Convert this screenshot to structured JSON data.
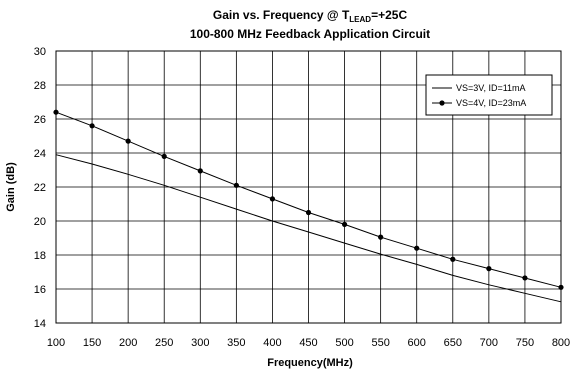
{
  "chart_data": {
    "type": "line",
    "title_prefix": "Gain vs. Frequency @ T",
    "title_sub": "LEAD",
    "title_suffix": "=+25C",
    "subtitle": "100-800 MHz Feedback Application Circuit",
    "xlabel": "Frequency(MHz)",
    "ylabel": "Gain (dB)",
    "xlim": [
      100,
      800
    ],
    "ylim": [
      14,
      30
    ],
    "xticks": [
      100,
      150,
      200,
      250,
      300,
      350,
      400,
      450,
      500,
      550,
      600,
      650,
      700,
      750,
      800
    ],
    "yticks": [
      14,
      16,
      18,
      20,
      22,
      24,
      26,
      28,
      30
    ],
    "grid": true,
    "legend_position": "top-right",
    "series": [
      {
        "name": "VS=3V, ID=11mA",
        "marker": "none",
        "x": [
          100,
          150,
          200,
          250,
          300,
          350,
          400,
          450,
          500,
          550,
          600,
          650,
          700,
          750,
          800
        ],
        "y": [
          23.9,
          23.35,
          22.75,
          22.1,
          21.4,
          20.7,
          20.0,
          19.35,
          18.7,
          18.05,
          17.45,
          16.8,
          16.25,
          15.75,
          15.25
        ]
      },
      {
        "name": "VS=4V, ID=23mA",
        "marker": "circle",
        "x": [
          100,
          150,
          200,
          250,
          300,
          350,
          400,
          450,
          500,
          550,
          600,
          650,
          700,
          750,
          800
        ],
        "y": [
          26.4,
          25.6,
          24.7,
          23.8,
          22.95,
          22.1,
          21.3,
          20.5,
          19.8,
          19.05,
          18.4,
          17.75,
          17.2,
          16.65,
          16.1
        ]
      }
    ]
  }
}
